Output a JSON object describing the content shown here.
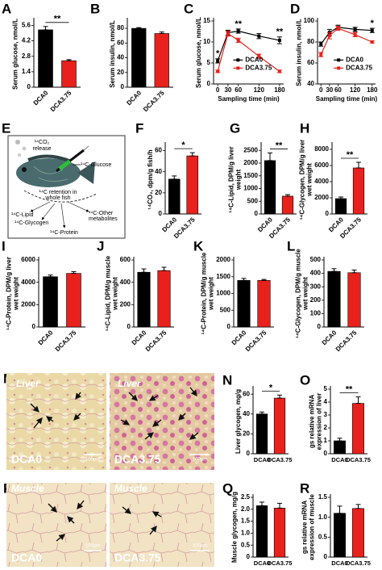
{
  "chart_data": [
    {
      "panel": "A",
      "type": "bar",
      "ylabel": [
        "Serum glucose, nmol/L"
      ],
      "categories": [
        "DCA0",
        "DCA3.75"
      ],
      "values": [
        5.2,
        2.4
      ],
      "errors": [
        0.3,
        0.1
      ],
      "colors": [
        "#000000",
        "#e8211c"
      ],
      "ylim": [
        0,
        6
      ],
      "yticks": [
        0,
        1.4,
        2.8,
        4.2,
        5.6
      ],
      "significance": "**"
    },
    {
      "panel": "B",
      "type": "bar",
      "ylabel": [
        "Serum insulin, nmol/L"
      ],
      "categories": [
        "DCA0",
        "DCA3.75"
      ],
      "values": [
        80,
        73
      ],
      "errors": [
        1,
        2
      ],
      "colors": [
        "#000000",
        "#e8211c"
      ],
      "ylim": [
        0,
        90
      ],
      "yticks": [
        0,
        20,
        40,
        60,
        80
      ]
    },
    {
      "panel": "C",
      "type": "line",
      "ylabel": [
        "Serum glucose, nmol/L"
      ],
      "xlabel": "Sampling time (min)",
      "x": [
        0,
        30,
        60,
        120,
        180
      ],
      "xlim": [
        -12,
        192
      ],
      "xticks": [
        0,
        30,
        60,
        120,
        180
      ],
      "ylim": [
        0,
        15
      ],
      "yticks": [
        0,
        5,
        10,
        15
      ],
      "annotations": [
        "*",
        null,
        "**",
        null,
        "**"
      ],
      "legend": "right",
      "series": [
        {
          "name": "DCA0",
          "color": "#000000",
          "values": [
            5.5,
            12.2,
            12.6,
            11.4,
            10.4
          ],
          "errors": [
            0.5,
            0.6,
            0.5,
            0.6,
            0.8
          ]
        },
        {
          "name": "DCA3.75",
          "color": "#e8211c",
          "values": [
            3.0,
            12.0,
            10.4,
            6.6,
            3.0
          ],
          "errors": [
            0.3,
            0.6,
            0.5,
            0.5,
            0.3
          ]
        }
      ]
    },
    {
      "panel": "D",
      "type": "line",
      "ylabel": [
        "Serum insulin, nmol/L"
      ],
      "xlabel": "Sampling time (min)",
      "x": [
        0,
        30,
        60,
        120,
        180
      ],
      "xlim": [
        -12,
        192
      ],
      "xticks": [
        0,
        30,
        60,
        120,
        180
      ],
      "ylim": [
        40,
        100
      ],
      "yticks": [
        40,
        60,
        80,
        100
      ],
      "annotations": [
        null,
        null,
        null,
        null,
        "*"
      ],
      "legend": "right",
      "series": [
        {
          "name": "DCA0",
          "color": "#000000",
          "values": [
            78,
            89,
            94,
            92,
            91
          ],
          "errors": [
            2,
            3,
            2,
            2,
            2
          ]
        },
        {
          "name": "DCA3.75",
          "color": "#e8211c",
          "values": [
            68,
            86,
            93,
            87,
            80
          ],
          "errors": [
            2,
            3,
            2,
            2,
            1
          ]
        }
      ]
    },
    {
      "panel": "F",
      "type": "bar",
      "ylabel": [
        "¹⁴CO₂, dpm/g fish/h"
      ],
      "categories": [
        "DCA0",
        "DCA3.75"
      ],
      "values": [
        33,
        55
      ],
      "errors": [
        3,
        3
      ],
      "colors": [
        "#000000",
        "#e8211c"
      ],
      "ylim": [
        0,
        65
      ],
      "yticks": [
        0,
        20,
        40,
        60
      ],
      "significance": "*"
    },
    {
      "panel": "G",
      "type": "bar",
      "ylabel": [
        "¹⁴C-Lipid, DPM/g liver",
        "weight"
      ],
      "categories": [
        "DCA0",
        "DCA3.75"
      ],
      "values": [
        2100,
        700
      ],
      "errors": [
        300,
        60
      ],
      "colors": [
        "#000000",
        "#e8211c"
      ],
      "ylim": [
        0,
        2700
      ],
      "yticks": [
        0,
        500,
        1000,
        1500,
        2000,
        2500
      ],
      "significance": "**"
    },
    {
      "panel": "H",
      "type": "bar",
      "ylabel": [
        "¹⁴C-Glycogen, DPM/g liver",
        "wet weight"
      ],
      "categories": [
        "DCA0",
        "DCA3.75"
      ],
      "values": [
        1900,
        5700
      ],
      "errors": [
        200,
        700
      ],
      "colors": [
        "#000000",
        "#e8211c"
      ],
      "ylim": [
        0,
        8500
      ],
      "yticks": [
        0,
        2000,
        4000,
        6000,
        8000
      ],
      "significance": "**"
    },
    {
      "panel": "I",
      "type": "bar",
      "ylabel": [
        "¹⁴C-Protein, DPM/g liver",
        "wet weight"
      ],
      "categories": [
        "DCA0",
        "DCA3.75"
      ],
      "values": [
        4500,
        4800
      ],
      "errors": [
        150,
        150
      ],
      "colors": [
        "#000000",
        "#e8211c"
      ],
      "ylim": [
        0,
        6000
      ],
      "yticks": [
        0,
        2000,
        4000,
        6000
      ]
    },
    {
      "panel": "J",
      "type": "bar",
      "ylabel": [
        "¹⁴C-Lipid, DPM/g muscle",
        "wet weight"
      ],
      "categories": [
        "DCA0",
        "DCA3.75"
      ],
      "values": [
        490,
        505
      ],
      "errors": [
        30,
        30
      ],
      "colors": [
        "#000000",
        "#e8211c"
      ],
      "ylim": [
        0,
        600
      ],
      "yticks": [
        0,
        200,
        400,
        600
      ]
    },
    {
      "panel": "K",
      "type": "bar",
      "ylabel": [
        "¹⁴C-Protein, DPM/g muscle",
        "wet weight"
      ],
      "categories": [
        "DCA0",
        "DCA3.75"
      ],
      "values": [
        1390,
        1390
      ],
      "errors": [
        60,
        30
      ],
      "colors": [
        "#000000",
        "#e8211c"
      ],
      "ylim": [
        0,
        2000
      ],
      "yticks": [
        0,
        500,
        1000,
        1500,
        2000
      ]
    },
    {
      "panel": "L",
      "type": "bar",
      "ylabel": [
        "¹⁴C-Glycogen, DPM/g muscle",
        "wet weight"
      ],
      "categories": [
        "DCA0",
        "DCA3.75"
      ],
      "values": [
        415,
        405
      ],
      "errors": [
        20,
        20
      ],
      "colors": [
        "#000000",
        "#e8211c"
      ],
      "ylim": [
        0,
        500
      ],
      "yticks": [
        0,
        100,
        200,
        300,
        400,
        500
      ]
    },
    {
      "panel": "N",
      "type": "bar",
      "ylabel": [
        "Liver glycogen, mg/g"
      ],
      "categories": [
        "DCA0",
        "DCA3.75"
      ],
      "values": [
        40,
        56
      ],
      "errors": [
        2,
        3
      ],
      "colors": [
        "#000000",
        "#e8211c"
      ],
      "ylim": [
        0,
        65
      ],
      "yticks": [
        0,
        20,
        40,
        60
      ],
      "significance": "*"
    },
    {
      "panel": "O",
      "type": "bar",
      "ylabel": [
        "gs relative mRNA",
        "expression of liver"
      ],
      "categories": [
        "DCA0",
        "DCA3.75"
      ],
      "values": [
        1.0,
        3.9
      ],
      "errors": [
        0.2,
        0.5
      ],
      "colors": [
        "#000000",
        "#e8211c"
      ],
      "ylim": [
        0,
        5
      ],
      "yticks": [
        0,
        1,
        2,
        3,
        4,
        5
      ],
      "significance": "**"
    },
    {
      "panel": "Q",
      "type": "bar",
      "ylabel": [
        "Muscle glycogen, mg/g"
      ],
      "categories": [
        "DCA0",
        "DCA3.75"
      ],
      "values": [
        2.15,
        2.05
      ],
      "errors": [
        0.15,
        0.2
      ],
      "colors": [
        "#000000",
        "#e8211c"
      ],
      "ylim": [
        0,
        2.5
      ],
      "yticks": [
        0,
        0.5,
        {
          "value": 1,
          "label": "1.0"
        },
        1.5,
        {
          "value": 2,
          "label": "2.0"
        },
        2.5
      ]
    },
    {
      "panel": "R",
      "type": "bar",
      "ylabel": [
        "gs relative mRNA",
        "expression of muscle"
      ],
      "categories": [
        "DCA0",
        "DCA3.75"
      ],
      "values": [
        1.1,
        1.22
      ],
      "errors": [
        0.18,
        0.1
      ],
      "colors": [
        "#000000",
        "#e8211c"
      ],
      "ylim": [
        0,
        1.5
      ],
      "yticks": [
        0,
        0.5,
        {
          "value": 1,
          "label": "1.0"
        },
        1.5
      ]
    }
  ],
  "diagram": {
    "panel": "E",
    "co2": [
      "¹⁴CO₂",
      "release"
    ],
    "glucose": "¹⁴C-Glucose",
    "retention": [
      "¹⁴C retention in",
      "whole fish"
    ],
    "lipid": "¹⁴C-Lipid",
    "glycogen": "¹⁴C-Glycogen",
    "protein": "¹⁴C-Protein",
    "other": [
      "¹⁴C-Other",
      "metabolites"
    ]
  },
  "micrographs": [
    {
      "panel": "M",
      "images": [
        {
          "tissue": "Liver",
          "group": "DCA0",
          "scale": "100μm"
        },
        {
          "tissue": "Liver",
          "group": "DCA3.75",
          "scale": "100μm"
        }
      ]
    },
    {
      "panel": "P",
      "images": [
        {
          "tissue": "Muscle",
          "group": "DCA0",
          "scale": "100μm"
        },
        {
          "tissue": "Muscle",
          "group": "DCA3.75",
          "scale": "100μm"
        }
      ]
    }
  ]
}
